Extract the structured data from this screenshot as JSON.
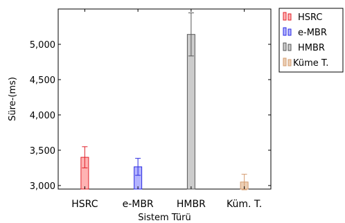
{
  "chart_data": {
    "type": "bar",
    "categories": [
      "HSRC",
      "e-MBR",
      "HMBR",
      "Küm. T."
    ],
    "values": [
      3400,
      3265,
      5140,
      3050
    ],
    "errors": [
      150,
      120,
      305,
      110
    ],
    "xlabel": "Sistem Türü",
    "ylabel": "Süre-(ms)",
    "ylim": [
      2950,
      5500
    ],
    "yticks": [
      3000,
      3500,
      4000,
      4500,
      5000
    ],
    "ytick_labels": [
      "3,000",
      "3,500",
      "4,000",
      "4,500",
      "5,000"
    ],
    "grid": false,
    "legend_position": "outside-right",
    "legend": [
      "HSRC",
      "e-MBR",
      "HMBR",
      "Küme T."
    ],
    "colors": [
      {
        "fill": "#ffb3b3",
        "stroke": "#e0202a"
      },
      {
        "fill": "#b3b3ff",
        "stroke": "#2a2ae0"
      },
      {
        "fill": "#cccccc",
        "stroke": "#555555"
      },
      {
        "fill": "#eccfb5",
        "stroke": "#d49c70"
      }
    ]
  }
}
